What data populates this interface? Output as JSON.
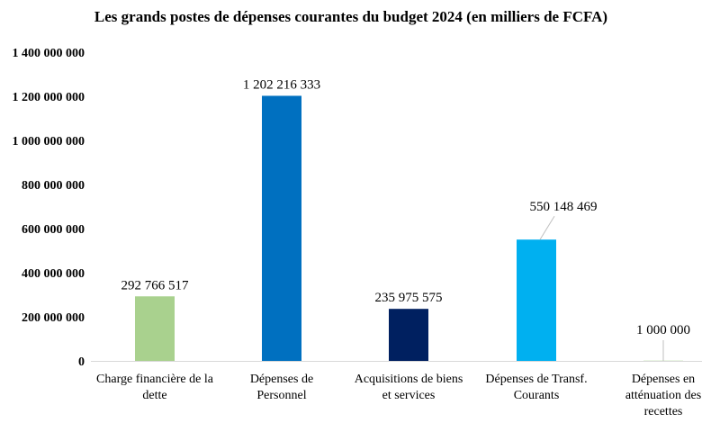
{
  "chart_data": {
    "type": "bar",
    "title": "Les grands postes de dépenses courantes du budget 2024 (en milliers de FCFA)",
    "xlabel": "",
    "ylabel": "",
    "ylim": [
      0,
      1400000000
    ],
    "grid": false,
    "y_ticks": [
      "0",
      "200 000 000",
      "400 000 000",
      "600 000 000",
      "800 000 000",
      "1 000 000 000",
      "1 200 000 000",
      "1 400 000 000"
    ],
    "categories": [
      [
        "Charge financière de la",
        "dette"
      ],
      [
        "Dépenses de",
        "Personnel"
      ],
      [
        "Acquisitions de biens",
        "et services"
      ],
      [
        "Dépenses de Transf.",
        "Courants"
      ],
      [
        "Dépenses en",
        "atténuation des",
        "recettes"
      ]
    ],
    "values": [
      292766517,
      1202216333,
      235975575,
      550148469,
      1000000
    ],
    "data_labels": [
      "292 766 517",
      "1 202 216 333",
      "235 975 575",
      "550 148 469",
      "1 000 000"
    ],
    "colors": [
      "#A9D18E",
      "#0070C0",
      "#002060",
      "#00B0F0",
      "#A9D18E"
    ]
  }
}
